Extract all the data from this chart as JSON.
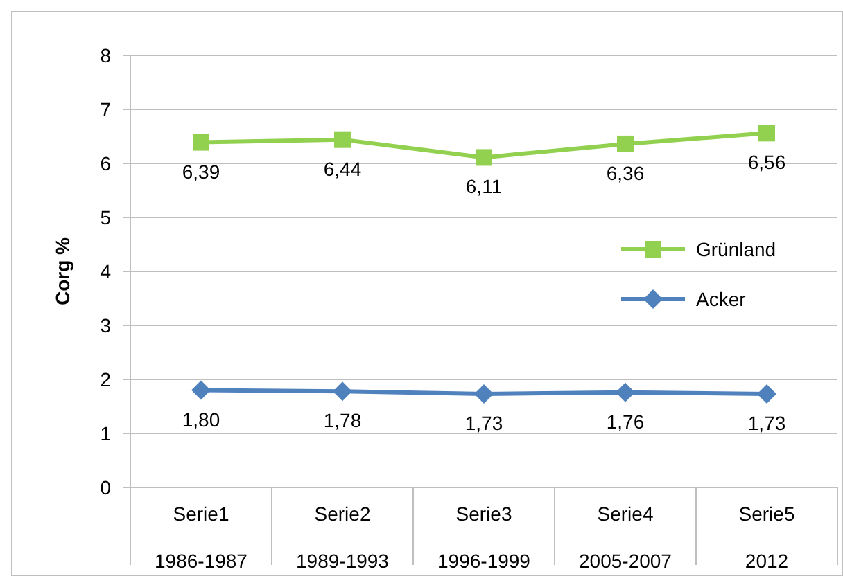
{
  "chart_data": {
    "type": "line",
    "ylabel": "Corg %",
    "categories": [
      "Serie1\n1986-1987",
      "Serie2\n1989-1993",
      "Serie3\n1996-1999",
      "Serie4\n2005-2007",
      "Serie5\n2012"
    ],
    "series": [
      {
        "name": "Grünland",
        "color": "#92d050",
        "marker": "square",
        "values": [
          6.39,
          6.44,
          6.11,
          6.36,
          6.56
        ],
        "value_labels": [
          "6,39",
          "6,44",
          "6,11",
          "6,36",
          "6,56"
        ]
      },
      {
        "name": "Acker",
        "color": "#4f81bd",
        "marker": "diamond",
        "values": [
          1.8,
          1.78,
          1.73,
          1.76,
          1.73
        ],
        "value_labels": [
          "1,80",
          "1,78",
          "1,73",
          "1,76",
          "1,73"
        ]
      }
    ],
    "ylim": [
      0,
      8
    ],
    "yticks": [
      0,
      1,
      2,
      3,
      4,
      5,
      6,
      7,
      8
    ],
    "grid": "y",
    "legend": "right",
    "line_style": "solid"
  }
}
